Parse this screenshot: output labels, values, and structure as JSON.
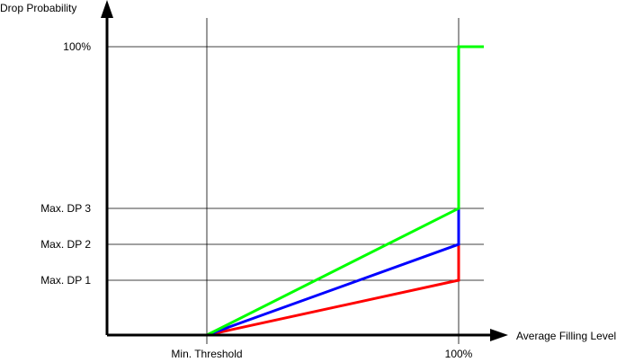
{
  "chart_data": {
    "type": "line",
    "ylabel": "Drop Probability",
    "xlabel": "Average Filling  Level",
    "x_ticks": [
      {
        "key": "min",
        "label": "Min. Threshold"
      },
      {
        "key": "max",
        "label": "100%"
      }
    ],
    "y_ticks": [
      {
        "key": "dp1",
        "label": "Max. DP 1"
      },
      {
        "key": "dp2",
        "label": "Max. DP 2"
      },
      {
        "key": "dp3",
        "label": "Max. DP 3"
      },
      {
        "key": "full",
        "label": "100%"
      }
    ],
    "series": [
      {
        "color": "#ff0000",
        "points": [
          [
            0,
            "zero"
          ],
          [
            "min",
            "zero"
          ],
          [
            "max",
            "dp1"
          ],
          [
            "max",
            "full"
          ]
        ]
      },
      {
        "color": "#0000ff",
        "points": [
          [
            0,
            "zero"
          ],
          [
            "min",
            "zero"
          ],
          [
            "max",
            "dp2"
          ],
          [
            "max",
            "full"
          ]
        ]
      },
      {
        "color": "#00ff00",
        "points": [
          [
            0,
            "zero"
          ],
          [
            "min",
            "zero"
          ],
          [
            "max",
            "dp3"
          ],
          [
            "max",
            "full"
          ],
          [
            "end",
            "full"
          ]
        ]
      }
    ],
    "grid": true,
    "axis_color": "#000000",
    "grid_color": "#000000"
  }
}
